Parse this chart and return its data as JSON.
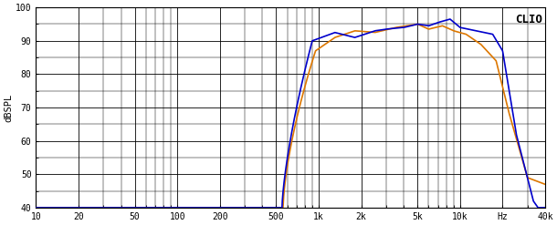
{
  "title": "CLIO",
  "ylabel": "dBSPL",
  "xlabel_hz": "Hz",
  "xmin": 10,
  "xmax": 40000,
  "ymin": 40,
  "ymax": 100,
  "yticks": [
    40,
    50,
    60,
    70,
    80,
    90,
    100
  ],
  "xtick_labels": [
    "10",
    "20",
    "50",
    "100",
    "200",
    "500",
    "1k",
    "2k",
    "5k",
    "10k",
    "Hz",
    "40k"
  ],
  "xtick_values": [
    10,
    20,
    50,
    100,
    200,
    500,
    1000,
    2000,
    5000,
    10000,
    20000,
    40000
  ],
  "blue_color": "#0000cc",
  "orange_color": "#dd7700",
  "background_color": "#ffffff",
  "grid_color": "#000000",
  "line_width": 1.2
}
